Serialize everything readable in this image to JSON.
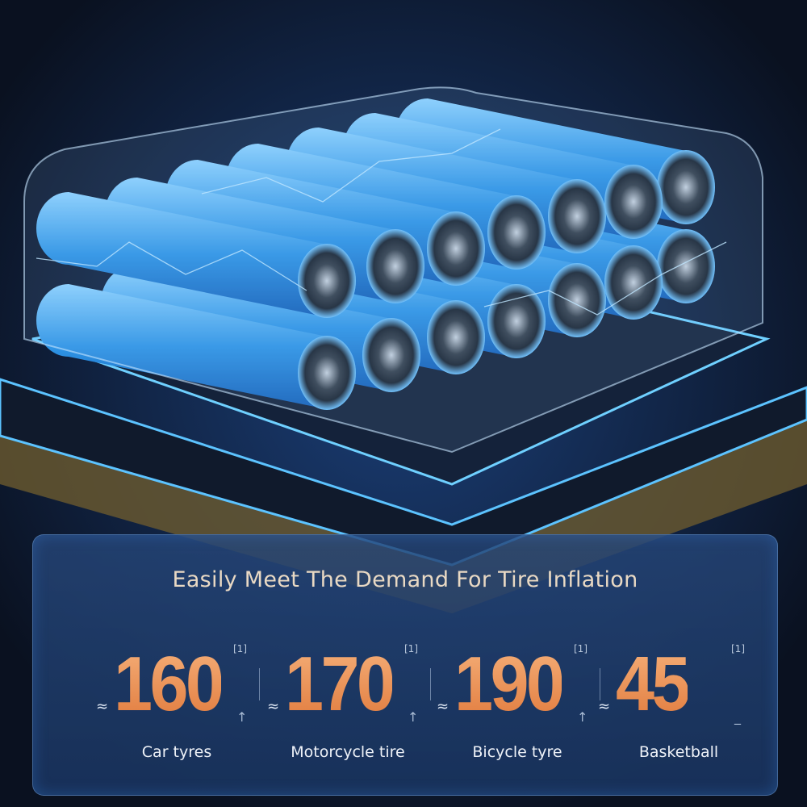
{
  "headline": "Easily Meet The Demand For Tire Inflation",
  "colors": {
    "number_orange": "#ec8a4a",
    "panel_blue": "#23457a",
    "battery_blue": "#3aa6f0",
    "background": "#0b1322"
  },
  "stats": [
    {
      "approx": "≈",
      "value": "160",
      "ref": "[1]",
      "arrow": "↑",
      "label": "Car tyres"
    },
    {
      "approx": "≈",
      "value": "170",
      "ref": "[1]",
      "arrow": "↑",
      "label": "Motorcycle tire"
    },
    {
      "approx": "≈",
      "value": "190",
      "ref": "[1]",
      "arrow": "↑",
      "label": "Bicycle tyre"
    },
    {
      "approx": "≈",
      "value": "45",
      "ref": "[1]",
      "arrow": "_",
      "label": "Basketball"
    }
  ]
}
